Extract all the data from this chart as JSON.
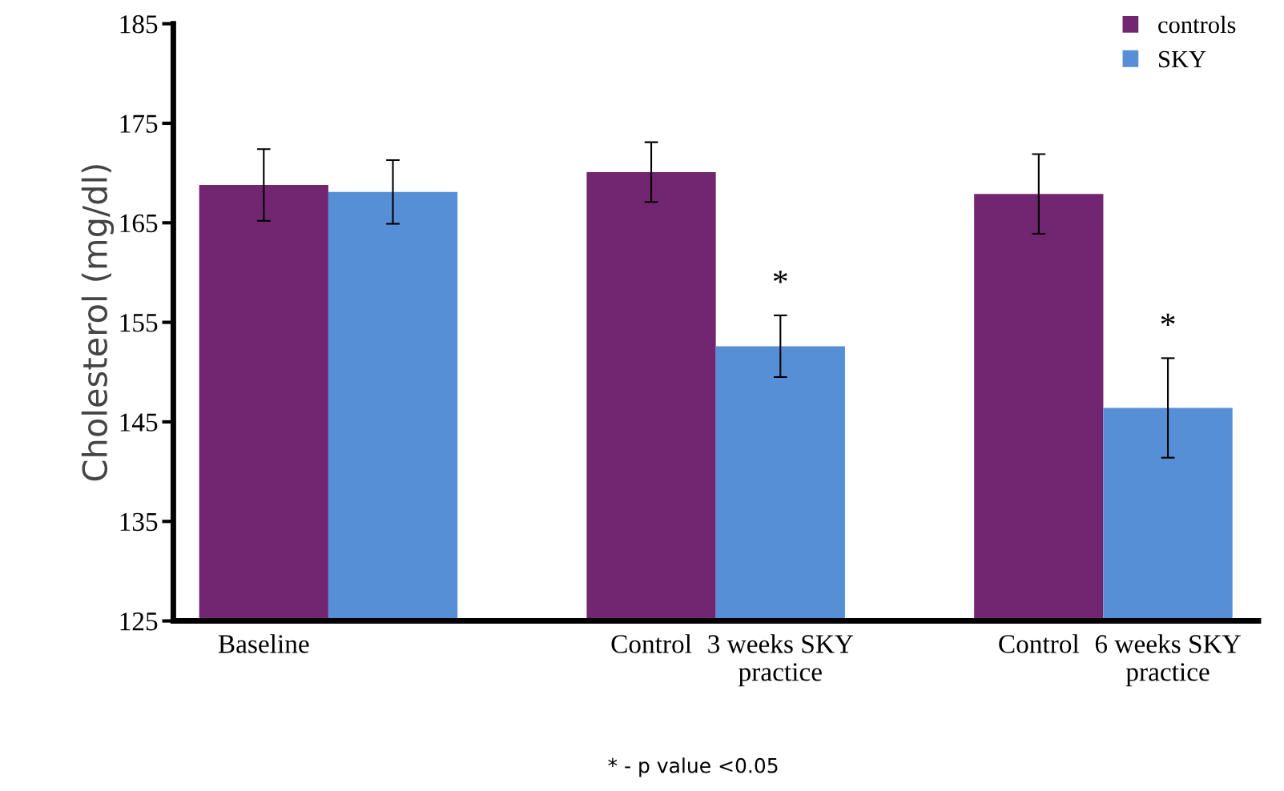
{
  "chart_data": {
    "type": "bar",
    "ylabel": "Cholesterol (mg/dl)",
    "categories": [
      "Baseline",
      null,
      null,
      "Control",
      "3 weeks SKY practice",
      null,
      "Control",
      "6 weeks SKY practice"
    ],
    "series": [
      {
        "name": "controls",
        "color": "#722570",
        "values": [
          168.8,
          null,
          null,
          170.1,
          null,
          null,
          167.9,
          null
        ],
        "errors": [
          3.6,
          null,
          null,
          3.0,
          null,
          null,
          4.0,
          null
        ]
      },
      {
        "name": "SKY",
        "color": "#568fd6",
        "values": [
          null,
          168.1,
          null,
          null,
          152.6,
          null,
          null,
          146.4
        ],
        "errors": [
          null,
          3.2,
          null,
          null,
          3.1,
          null,
          null,
          5.0
        ],
        "value_labels": [
          null,
          null,
          null,
          null,
          "*",
          null,
          null,
          "*"
        ]
      }
    ],
    "ylim": [
      125,
      185
    ],
    "yticks": [
      125,
      135,
      145,
      155,
      165,
      175,
      185
    ],
    "legend": "top right",
    "grid": false,
    "annotations": [
      "* - p value <0.05"
    ]
  }
}
